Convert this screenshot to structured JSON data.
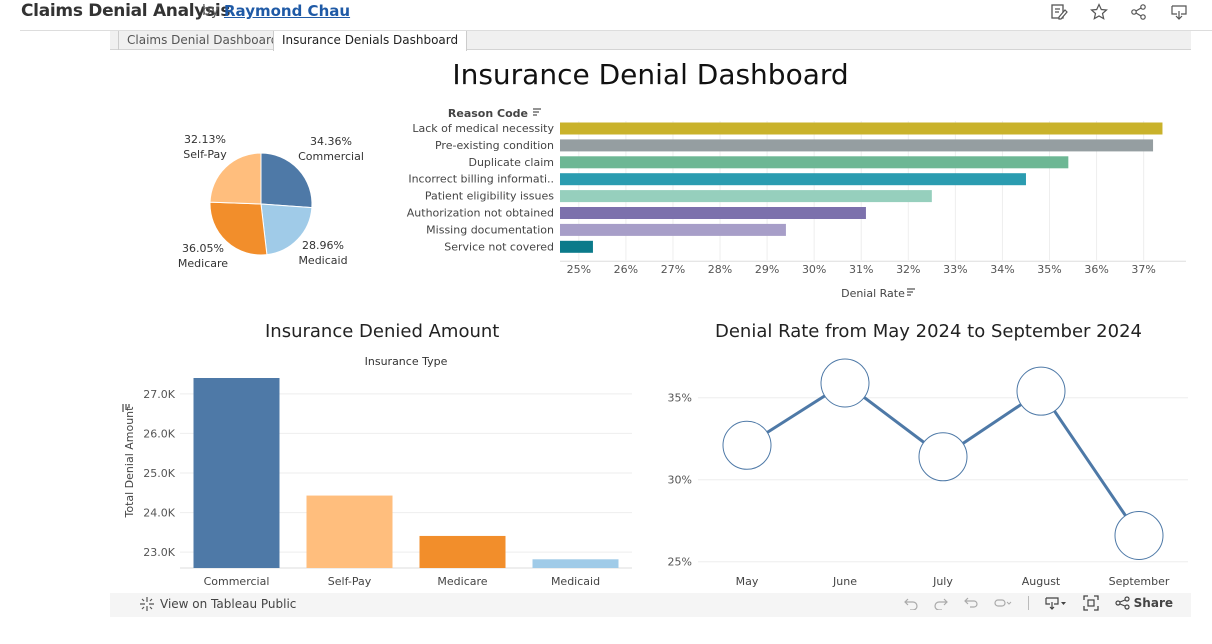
{
  "header": {
    "title": "Claims Denial Analysis",
    "by": "by",
    "author": "Raymond Chau",
    "icons": [
      "edit-icon",
      "star-icon",
      "share-icon",
      "download-icon"
    ]
  },
  "tabs": [
    {
      "label": "Claims Denial Dashboard",
      "active": false
    },
    {
      "label": "Insurance Denials Dashboard",
      "active": true
    }
  ],
  "dashboard_title": "Insurance Denial Dashboard",
  "sections": {
    "denied_amount_title": "Insurance Denied Amount",
    "denial_rate_title": "Denial Rate from May 2024 to September 2024"
  },
  "footer": {
    "view_on": "View on Tableau Public",
    "share": "Share"
  },
  "colors": {
    "commercial": "#4e79a7",
    "medicaid": "#a0cbe8",
    "medicare": "#f28e2b",
    "selfpay": "#ffbe7d",
    "line": "#4e79a7"
  },
  "chart_data": [
    {
      "type": "pie",
      "categories": [
        "Commercial",
        "Medicaid",
        "Medicare",
        "Self-Pay"
      ],
      "values": [
        34.36,
        28.96,
        36.05,
        32.13
      ],
      "labels": [
        "34.36%",
        "28.96%",
        "36.05%",
        "32.13%"
      ],
      "colors": [
        "#4e79a7",
        "#a0cbe8",
        "#f28e2b",
        "#ffbe7d"
      ]
    },
    {
      "type": "bar",
      "orientation": "horizontal",
      "ylabel": "Reason Code",
      "xlabel": "Denial Rate",
      "categories": [
        "Lack of medical necessity",
        "Pre-existing condition",
        "Duplicate claim",
        "Incorrect billing informati..",
        "Patient eligibility issues",
        "Authorization not obtained",
        "Missing documentation",
        "Service not covered"
      ],
      "values": [
        37.4,
        37.2,
        35.4,
        34.5,
        32.5,
        31.1,
        29.4,
        25.3
      ],
      "colors": [
        "#c9b22b",
        "#959ea1",
        "#6db794",
        "#2b9cb0",
        "#96cfbd",
        "#7c71ac",
        "#a79ec8",
        "#0b7a8a"
      ],
      "xticks": [
        "25%",
        "26%",
        "27%",
        "28%",
        "29%",
        "30%",
        "31%",
        "32%",
        "33%",
        "34%",
        "35%",
        "36%",
        "37%"
      ],
      "xlim": [
        24.6,
        37.9
      ],
      "grid": true
    },
    {
      "type": "bar",
      "title": "Insurance Type",
      "ylabel": "Total Denial Amount",
      "categories": [
        "Commercial",
        "Self-Pay",
        "Medicare",
        "Medicaid"
      ],
      "values": [
        27400,
        24430,
        23410,
        22820
      ],
      "colors": [
        "#4e79a7",
        "#ffbe7d",
        "#f28e2b",
        "#a0cbe8"
      ],
      "yticks": [
        "23.0K",
        "24.0K",
        "25.0K",
        "26.0K",
        "27.0K"
      ],
      "ytick_values": [
        23000,
        24000,
        25000,
        26000,
        27000
      ],
      "ylim": [
        22600,
        27400
      ],
      "grid": true
    },
    {
      "type": "line",
      "categories": [
        "May",
        "June",
        "July",
        "August",
        "September"
      ],
      "values": [
        32.1,
        35.9,
        31.4,
        35.4,
        26.6
      ],
      "yticks": [
        "25%",
        "30%",
        "35%"
      ],
      "ytick_values": [
        25,
        30,
        35
      ],
      "ylim": [
        24.8,
        37.3
      ],
      "grid": true
    }
  ]
}
